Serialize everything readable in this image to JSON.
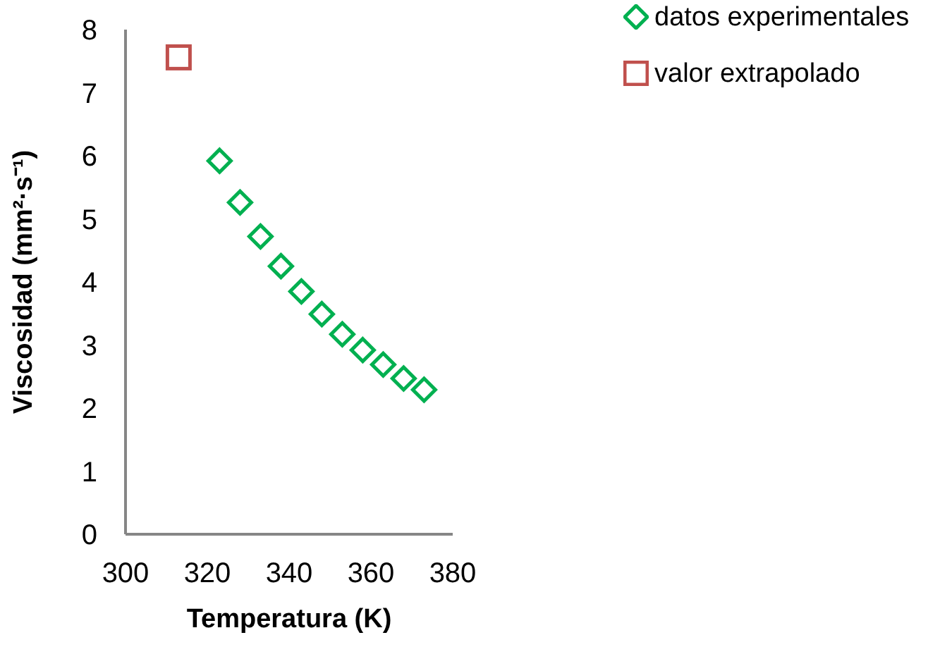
{
  "chart_data": {
    "type": "scatter",
    "xlabel": "Temperatura (K)",
    "ylabel": "Viscosidad (mm²·s⁻¹)",
    "xlim": [
      300,
      380
    ],
    "xticks": [
      300,
      320,
      340,
      360,
      380
    ],
    "ylim": [
      0,
      8
    ],
    "yticks": [
      0,
      1,
      2,
      3,
      4,
      5,
      6,
      7,
      8
    ],
    "grid": false,
    "legend": "top right",
    "series": [
      {
        "name": "datos experimentales",
        "color": "#00b050",
        "marker": "diamond",
        "x": [
          323,
          328,
          333,
          338,
          343,
          348,
          353,
          358,
          363,
          368,
          373
        ],
        "values": [
          5.92,
          5.26,
          4.72,
          4.25,
          3.85,
          3.49,
          3.17,
          2.92,
          2.69,
          2.47,
          2.29
        ]
      },
      {
        "name": "valor extrapolado",
        "color": "#c0504d",
        "marker": "square",
        "x": [
          313
        ],
        "values": [
          7.56
        ]
      }
    ]
  }
}
